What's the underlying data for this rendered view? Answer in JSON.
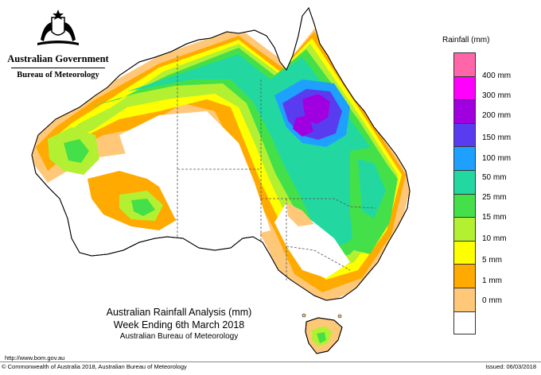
{
  "header": {
    "government": "Australian Government",
    "bureau": "Bureau of Meteorology"
  },
  "legend": {
    "title": "Rainfall (mm)",
    "items": [
      {
        "label": "",
        "color": "#ff66aa"
      },
      {
        "label": "400 mm",
        "color": "#ff00ff"
      },
      {
        "label": "300 mm",
        "color": "#a000e0"
      },
      {
        "label": "200 mm",
        "color": "#5a3cf0"
      },
      {
        "label": "150 mm",
        "color": "#1ea0ff"
      },
      {
        "label": "100 mm",
        "color": "#22d8a0"
      },
      {
        "label": "50 mm",
        "color": "#44e04a"
      },
      {
        "label": "25 mm",
        "color": "#b4f032"
      },
      {
        "label": "15 mm",
        "color": "#ffff00"
      },
      {
        "label": "10 mm",
        "color": "#ffaa00"
      },
      {
        "label": "5 mm",
        "color": "#ffc878"
      },
      {
        "label": "1 mm",
        "color": "#ffffff"
      },
      {
        "label": "0 mm",
        "color": ""
      }
    ]
  },
  "caption": {
    "line1": "Australian Rainfall Analysis (mm)",
    "line2": "Week Ending 6th March 2018",
    "line3": "Australian Bureau of Meteorology"
  },
  "footer": {
    "url": "http://www.bom.gov.au",
    "copyright": "© Commonwealth of Australia 2018, Australian Bureau of Meteorology",
    "issued": "Issued: 06/03/2018"
  }
}
